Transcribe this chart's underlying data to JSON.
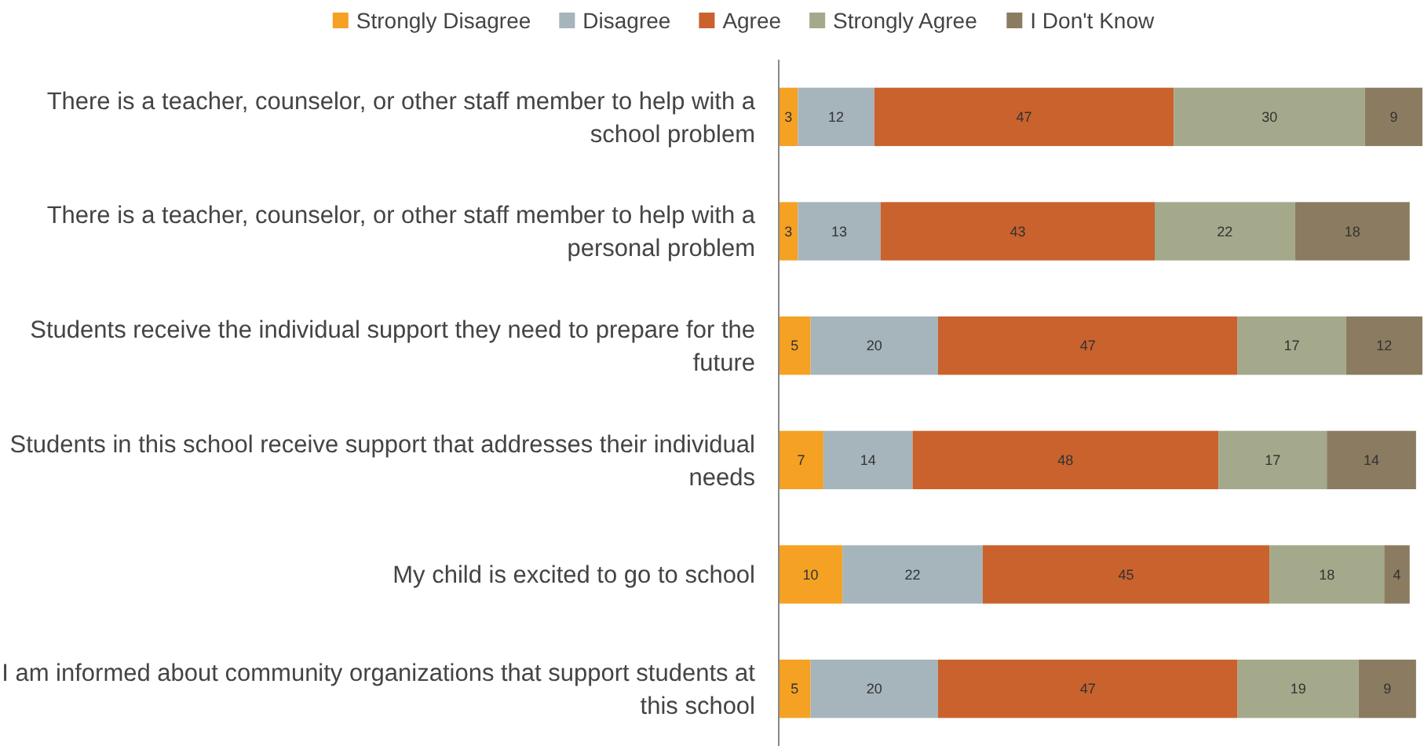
{
  "chart_data": {
    "type": "bar",
    "orientation": "horizontal",
    "stacked": true,
    "data_labels": true,
    "legend": "top",
    "categories": [
      "There is a teacher, counselor, or other staff member to help with a school problem",
      "There is a teacher, counselor, or other staff member to help with a personal problem",
      "Students receive the individual support they need to prepare for the future",
      "Students in this school receive support that addresses their individual needs",
      "My child is excited to go to school",
      "I am informed about community organizations that support students at this school"
    ],
    "series": [
      {
        "name": "Strongly Disagree",
        "color": "#f4a124",
        "values": [
          3,
          3,
          5,
          7,
          10,
          5
        ]
      },
      {
        "name": "Disagree",
        "color": "#a6b4bb",
        "values": [
          12,
          13,
          20,
          14,
          22,
          20
        ]
      },
      {
        "name": "Agree",
        "color": "#c9622d",
        "values": [
          47,
          43,
          47,
          48,
          45,
          47
        ]
      },
      {
        "name": "Strongly Agree",
        "color": "#a3a98a",
        "values": [
          30,
          22,
          17,
          17,
          18,
          19
        ]
      },
      {
        "name": "I Don't Know",
        "color": "#8b7b60",
        "values": [
          9,
          18,
          12,
          14,
          4,
          9
        ]
      }
    ]
  }
}
